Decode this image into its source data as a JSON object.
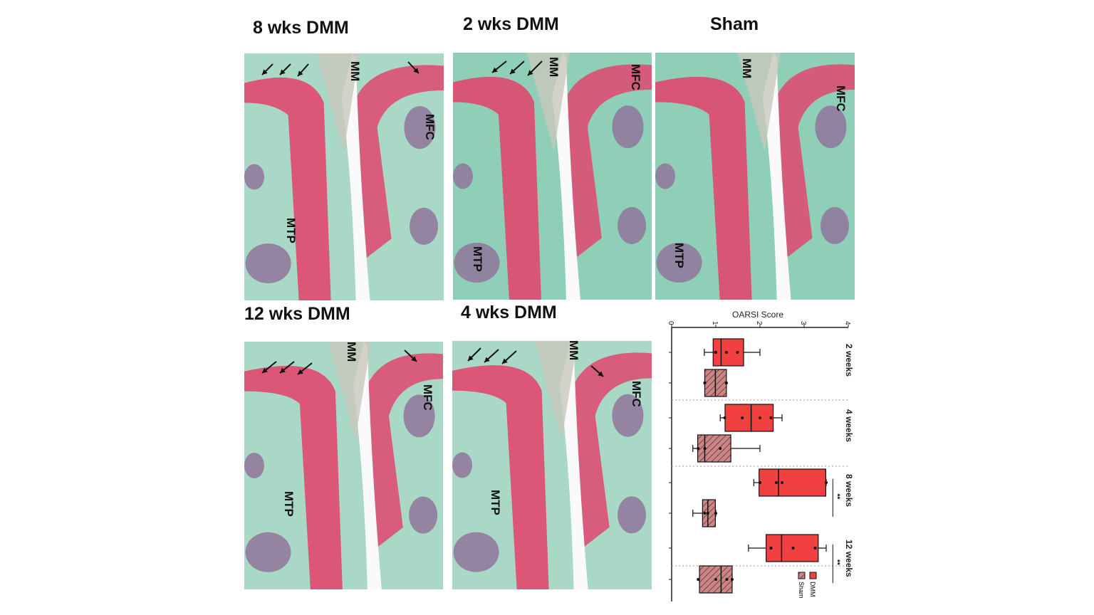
{
  "panels": [
    {
      "id": "8wk",
      "title": "8 wks DMM",
      "labels": [
        "MM",
        "MFC",
        "MTP"
      ]
    },
    {
      "id": "2wk",
      "title": "2 wks DMM",
      "labels": [
        "MM",
        "MFC",
        "MTP"
      ]
    },
    {
      "id": "sham",
      "title": "Sham",
      "labels": [
        "MM",
        "MFC",
        "MTP"
      ]
    },
    {
      "id": "12wk",
      "title": "12 wks DMM",
      "labels": [
        "MM",
        "MFC",
        "MTP"
      ]
    },
    {
      "id": "4wk",
      "title": "4 wks DMM",
      "labels": [
        "MM",
        "MFC",
        "MTP"
      ]
    }
  ],
  "colors": {
    "stain_background": "#a9d8c6",
    "cartilage": "#e0486e",
    "marrow": "#8e6f99",
    "dmm": "#f04040",
    "sham": "#c98888"
  },
  "chart_data": {
    "type": "box",
    "orientation": "horizontal (rotated 90°)",
    "title": "OARSI Score",
    "xlim": [
      0,
      4
    ],
    "ticks": [
      "0",
      "1",
      "2",
      "3",
      "4"
    ],
    "groups": [
      "2 weeks",
      "4 weeks",
      "8 weeks",
      "12 weeks"
    ],
    "legend": [
      {
        "name": "DMM",
        "color": "#f04040",
        "pattern": "solid"
      },
      {
        "name": "Sham",
        "color": "#c98888",
        "pattern": "hatched"
      }
    ],
    "legend_position": "bottom-right",
    "significance": [
      {
        "group": "8 weeks",
        "label": "**"
      },
      {
        "group": "12 weeks",
        "label": "**"
      }
    ],
    "series": [
      {
        "group": "2 weeks",
        "name": "DMM",
        "min": 0.74,
        "q1": 0.94,
        "median": 1.12,
        "q3": 1.63,
        "max": 2.0,
        "points": [
          0.99,
          1.0,
          1.24,
          1.49
        ]
      },
      {
        "group": "2 weeks",
        "name": "Sham",
        "min": 0.75,
        "q1": 0.75,
        "median": 0.99,
        "q3": 1.24,
        "max": 1.24,
        "points": [
          0.75,
          0.75,
          1.24,
          1.24
        ]
      },
      {
        "group": "4 weeks",
        "name": "DMM",
        "min": 1.1,
        "q1": 1.21,
        "median": 1.8,
        "q3": 2.3,
        "max": 2.5,
        "points": [
          1.2,
          1.6,
          2.0,
          2.25
        ]
      },
      {
        "group": "4 weeks",
        "name": "Sham",
        "min": 0.48,
        "q1": 0.59,
        "median": 0.75,
        "q3": 1.34,
        "max": 2.0,
        "points": [
          0.6,
          0.75,
          1.1
        ]
      },
      {
        "group": "8 weeks",
        "name": "DMM",
        "min": 1.86,
        "q1": 1.98,
        "median": 2.42,
        "q3": 3.49,
        "max": 3.5,
        "points": [
          2.0,
          2.37,
          2.5,
          3.5
        ]
      },
      {
        "group": "8 weeks",
        "name": "Sham",
        "min": 0.48,
        "q1": 0.7,
        "median": 0.82,
        "q3": 0.99,
        "max": 1.0,
        "points": [
          0.75,
          0.82,
          1.0
        ]
      },
      {
        "group": "12 weeks",
        "name": "DMM",
        "min": 1.74,
        "q1": 2.14,
        "median": 2.49,
        "q3": 3.32,
        "max": 3.5,
        "points": [
          2.25,
          2.25,
          2.75,
          3.25
        ]
      },
      {
        "group": "12 weeks",
        "name": "Sham",
        "min": 0.63,
        "q1": 0.63,
        "median": 1.12,
        "q3": 1.37,
        "max": 1.37,
        "points": [
          0.6,
          1.0,
          1.25,
          1.37
        ]
      }
    ]
  }
}
